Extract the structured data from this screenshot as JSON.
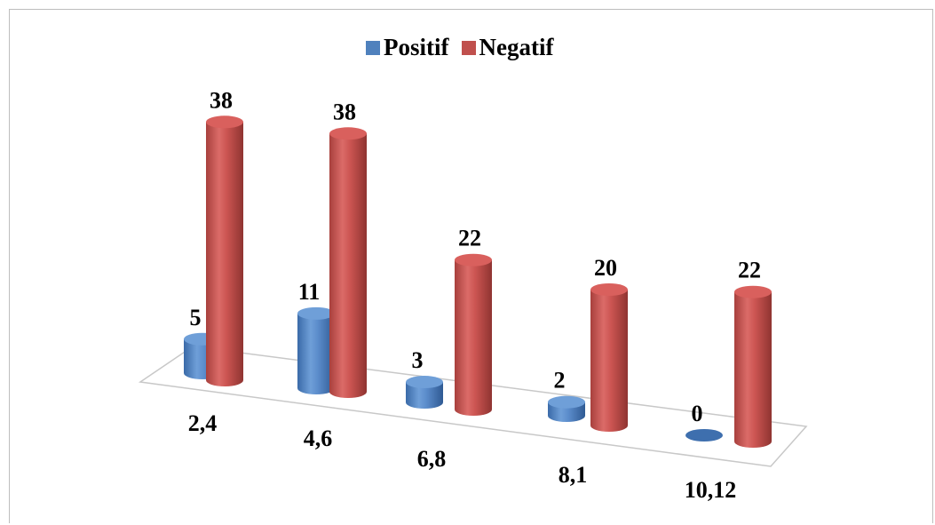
{
  "chart_data": {
    "type": "bar",
    "style": "3d-cylinder",
    "categories": [
      "2,4",
      "4,6",
      "6,8",
      "8,1",
      "10,12"
    ],
    "series": [
      {
        "name": "Positif",
        "values": [
          5,
          11,
          3,
          2,
          0
        ],
        "color": "#4f81bd"
      },
      {
        "name": "Negatif",
        "values": [
          38,
          38,
          22,
          20,
          22
        ],
        "color": "#c0504d"
      }
    ],
    "ylim": [
      0,
      40
    ],
    "grid": false,
    "legend_position": "top"
  }
}
